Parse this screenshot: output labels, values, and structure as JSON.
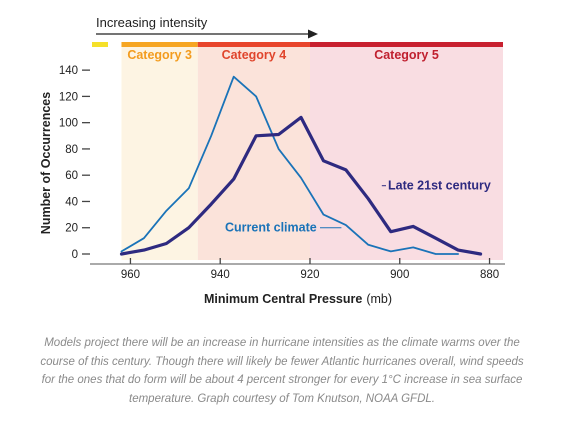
{
  "colors": {
    "current": "#1a73b8",
    "late": "#2e2a80",
    "cat3_band": "#fdf4e3",
    "cat4_band": "#fbe3da",
    "cat5_band": "#f9dde2",
    "cat3_bar": "#f6a623",
    "cat4_bar": "#e8452c",
    "cat5_bar": "#c8202f",
    "pre_bar": "#f5e02a",
    "cat3_text": "#f39c1e",
    "cat4_text": "#e0452c",
    "cat5_text": "#c0202f"
  },
  "header": {
    "intensity_label": "Increasing intensity"
  },
  "chart_data": {
    "type": "line",
    "x_reversed": true,
    "xlim": [
      965,
      877
    ],
    "ylim": [
      0,
      150
    ],
    "xlabel": "Minimum Central Pressure",
    "xlabel_unit": "(mb)",
    "ylabel": "Number of Occurrences",
    "xticks": [
      960,
      940,
      920,
      900,
      880
    ],
    "yticks": [
      0,
      20,
      40,
      60,
      80,
      100,
      120,
      140
    ],
    "categories": [
      {
        "label": "Category 3",
        "from": 962,
        "to": 945
      },
      {
        "label": "Category 4",
        "from": 945,
        "to": 920
      },
      {
        "label": "Category 5",
        "from": 920,
        "to": 877
      }
    ],
    "series": [
      {
        "name": "Current climate",
        "color_key": "current",
        "x": [
          962,
          957,
          952,
          947,
          942,
          937,
          932,
          927,
          922,
          917,
          912,
          907,
          902,
          897,
          892,
          887
        ],
        "y": [
          2,
          12,
          33,
          50,
          90,
          135,
          120,
          80,
          58,
          30,
          22,
          7,
          2,
          5,
          0,
          0
        ]
      },
      {
        "name": "Late 21st century",
        "color_key": "late",
        "x": [
          962,
          957,
          952,
          947,
          942,
          937,
          932,
          927,
          922,
          917,
          912,
          907,
          902,
          897,
          892,
          887,
          882
        ],
        "y": [
          0,
          3,
          8,
          20,
          38,
          57,
          90,
          91,
          104,
          71,
          64,
          42,
          17,
          21,
          12,
          3,
          0
        ]
      }
    ]
  },
  "caption": "Models project there will be an increase in hurricane intensities as the climate warms over the course of this century. Though there will likely be fewer Atlantic hurricanes overall, wind speeds for the ones that do form will be about 4 percent stronger for every 1°C increase in sea surface temperature. Graph courtesy of Tom Knutson, NOAA GFDL."
}
